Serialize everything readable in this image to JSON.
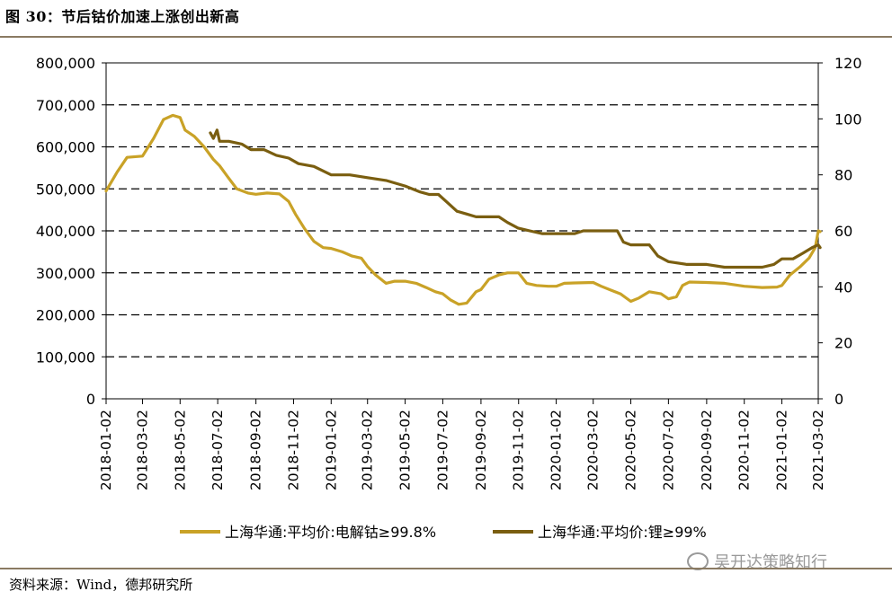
{
  "figure": {
    "title": "图 30：节后钴价加速上涨创出新高",
    "source": "资料来源：Wind，德邦研究所",
    "watermark": "吴开达策略知行"
  },
  "chart_data": {
    "type": "line",
    "x_tick_labels": [
      "2018-01-02",
      "2018-03-02",
      "2018-05-02",
      "2018-07-02",
      "2018-09-02",
      "2018-11-02",
      "2019-01-02",
      "2019-03-02",
      "2019-05-02",
      "2019-07-02",
      "2019-09-02",
      "2019-11-02",
      "2020-01-02",
      "2020-03-02",
      "2020-05-02",
      "2020-07-02",
      "2020-09-02",
      "2020-11-02",
      "2021-01-02",
      "2021-03-02"
    ],
    "y_left": {
      "range": [
        0,
        800000
      ],
      "ticks": [
        "0",
        "100,000",
        "200,000",
        "300,000",
        "400,000",
        "500,000",
        "600,000",
        "700,000",
        "800,000"
      ]
    },
    "y_right": {
      "range": [
        0,
        120
      ],
      "ticks": [
        "0",
        "20",
        "40",
        "60",
        "80",
        "100",
        "120"
      ]
    },
    "grid": "horizontal dashed",
    "legend_position": "bottom",
    "series": [
      {
        "name": "上海华通:平均价:电解钴≥99.8%",
        "axis": "left",
        "color": "#c9a227",
        "points": [
          [
            "2018-01-02",
            495000
          ],
          [
            "2018-01-20",
            540000
          ],
          [
            "2018-02-05",
            575000
          ],
          [
            "2018-03-02",
            578000
          ],
          [
            "2018-03-20",
            620000
          ],
          [
            "2018-04-05",
            665000
          ],
          [
            "2018-04-20",
            675000
          ],
          [
            "2018-05-02",
            670000
          ],
          [
            "2018-05-10",
            640000
          ],
          [
            "2018-05-25",
            625000
          ],
          [
            "2018-06-10",
            600000
          ],
          [
            "2018-06-25",
            570000
          ],
          [
            "2018-07-05",
            555000
          ],
          [
            "2018-07-20",
            525000
          ],
          [
            "2018-08-02",
            500000
          ],
          [
            "2018-08-20",
            490000
          ],
          [
            "2018-09-02",
            487000
          ],
          [
            "2018-09-20",
            490000
          ],
          [
            "2018-10-10",
            488000
          ],
          [
            "2018-10-25",
            470000
          ],
          [
            "2018-11-05",
            440000
          ],
          [
            "2018-11-20",
            405000
          ],
          [
            "2018-12-05",
            375000
          ],
          [
            "2018-12-20",
            360000
          ],
          [
            "2019-01-02",
            358000
          ],
          [
            "2019-01-20",
            350000
          ],
          [
            "2019-02-05",
            340000
          ],
          [
            "2019-02-20",
            335000
          ],
          [
            "2019-03-02",
            315000
          ],
          [
            "2019-03-15",
            295000
          ],
          [
            "2019-04-01",
            275000
          ],
          [
            "2019-04-15",
            280000
          ],
          [
            "2019-05-02",
            280000
          ],
          [
            "2019-05-20",
            275000
          ],
          [
            "2019-06-05",
            265000
          ],
          [
            "2019-06-20",
            255000
          ],
          [
            "2019-07-02",
            250000
          ],
          [
            "2019-07-15",
            235000
          ],
          [
            "2019-07-28",
            225000
          ],
          [
            "2019-08-10",
            228000
          ],
          [
            "2019-08-25",
            255000
          ],
          [
            "2019-09-02",
            260000
          ],
          [
            "2019-09-15",
            285000
          ],
          [
            "2019-10-01",
            295000
          ],
          [
            "2019-10-15",
            300000
          ],
          [
            "2019-11-02",
            300000
          ],
          [
            "2019-11-15",
            275000
          ],
          [
            "2019-12-01",
            270000
          ],
          [
            "2019-12-20",
            268000
          ],
          [
            "2020-01-02",
            268000
          ],
          [
            "2020-01-15",
            275000
          ],
          [
            "2020-02-01",
            276000
          ],
          [
            "2020-03-02",
            277000
          ],
          [
            "2020-03-15",
            268000
          ],
          [
            "2020-04-01",
            258000
          ],
          [
            "2020-04-15",
            250000
          ],
          [
            "2020-05-02",
            232000
          ],
          [
            "2020-05-15",
            240000
          ],
          [
            "2020-06-01",
            255000
          ],
          [
            "2020-06-20",
            250000
          ],
          [
            "2020-07-02",
            238000
          ],
          [
            "2020-07-15",
            243000
          ],
          [
            "2020-07-25",
            270000
          ],
          [
            "2020-08-05",
            278000
          ],
          [
            "2020-09-02",
            277000
          ],
          [
            "2020-10-01",
            275000
          ],
          [
            "2020-11-02",
            268000
          ],
          [
            "2020-12-01",
            265000
          ],
          [
            "2020-12-25",
            266000
          ],
          [
            "2021-01-02",
            270000
          ],
          [
            "2021-01-15",
            295000
          ],
          [
            "2021-02-01",
            315000
          ],
          [
            "2021-02-15",
            335000
          ],
          [
            "2021-02-25",
            360000
          ],
          [
            "2021-03-02",
            400000
          ],
          [
            "2021-03-05",
            398000
          ]
        ]
      },
      {
        "name": "上海华通:平均价:锂≥99%",
        "axis": "right",
        "color": "#7a5e10",
        "points": [
          [
            "2018-06-20",
            95
          ],
          [
            "2018-06-25",
            93
          ],
          [
            "2018-07-01",
            96
          ],
          [
            "2018-07-05",
            92
          ],
          [
            "2018-07-20",
            92
          ],
          [
            "2018-08-10",
            91
          ],
          [
            "2018-08-25",
            89
          ],
          [
            "2018-09-15",
            89
          ],
          [
            "2018-10-05",
            87
          ],
          [
            "2018-10-25",
            86
          ],
          [
            "2018-11-10",
            84
          ],
          [
            "2018-12-05",
            83
          ],
          [
            "2019-01-02",
            80
          ],
          [
            "2019-02-01",
            80
          ],
          [
            "2019-03-02",
            79
          ],
          [
            "2019-04-01",
            78
          ],
          [
            "2019-05-02",
            76
          ],
          [
            "2019-05-25",
            74
          ],
          [
            "2019-06-10",
            73
          ],
          [
            "2019-06-25",
            73
          ],
          [
            "2019-07-10",
            70
          ],
          [
            "2019-07-25",
            67
          ],
          [
            "2019-08-10",
            66
          ],
          [
            "2019-08-25",
            65
          ],
          [
            "2019-09-02",
            65
          ],
          [
            "2019-10-01",
            65
          ],
          [
            "2019-10-15",
            63
          ],
          [
            "2019-11-01",
            61
          ],
          [
            "2019-11-20",
            60
          ],
          [
            "2019-12-10",
            59
          ],
          [
            "2020-01-02",
            59
          ],
          [
            "2020-02-01",
            59
          ],
          [
            "2020-02-15",
            60
          ],
          [
            "2020-03-02",
            60
          ],
          [
            "2020-04-10",
            60
          ],
          [
            "2020-04-20",
            56
          ],
          [
            "2020-05-02",
            55
          ],
          [
            "2020-06-01",
            55
          ],
          [
            "2020-06-15",
            51
          ],
          [
            "2020-07-02",
            49
          ],
          [
            "2020-08-01",
            48
          ],
          [
            "2020-09-02",
            48
          ],
          [
            "2020-10-01",
            47
          ],
          [
            "2020-11-02",
            47
          ],
          [
            "2020-12-01",
            47
          ],
          [
            "2020-12-20",
            48
          ],
          [
            "2021-01-02",
            50
          ],
          [
            "2021-01-20",
            50
          ],
          [
            "2021-02-05",
            52
          ],
          [
            "2021-02-20",
            54
          ],
          [
            "2021-03-02",
            55
          ],
          [
            "2021-03-05",
            54
          ]
        ]
      }
    ]
  }
}
